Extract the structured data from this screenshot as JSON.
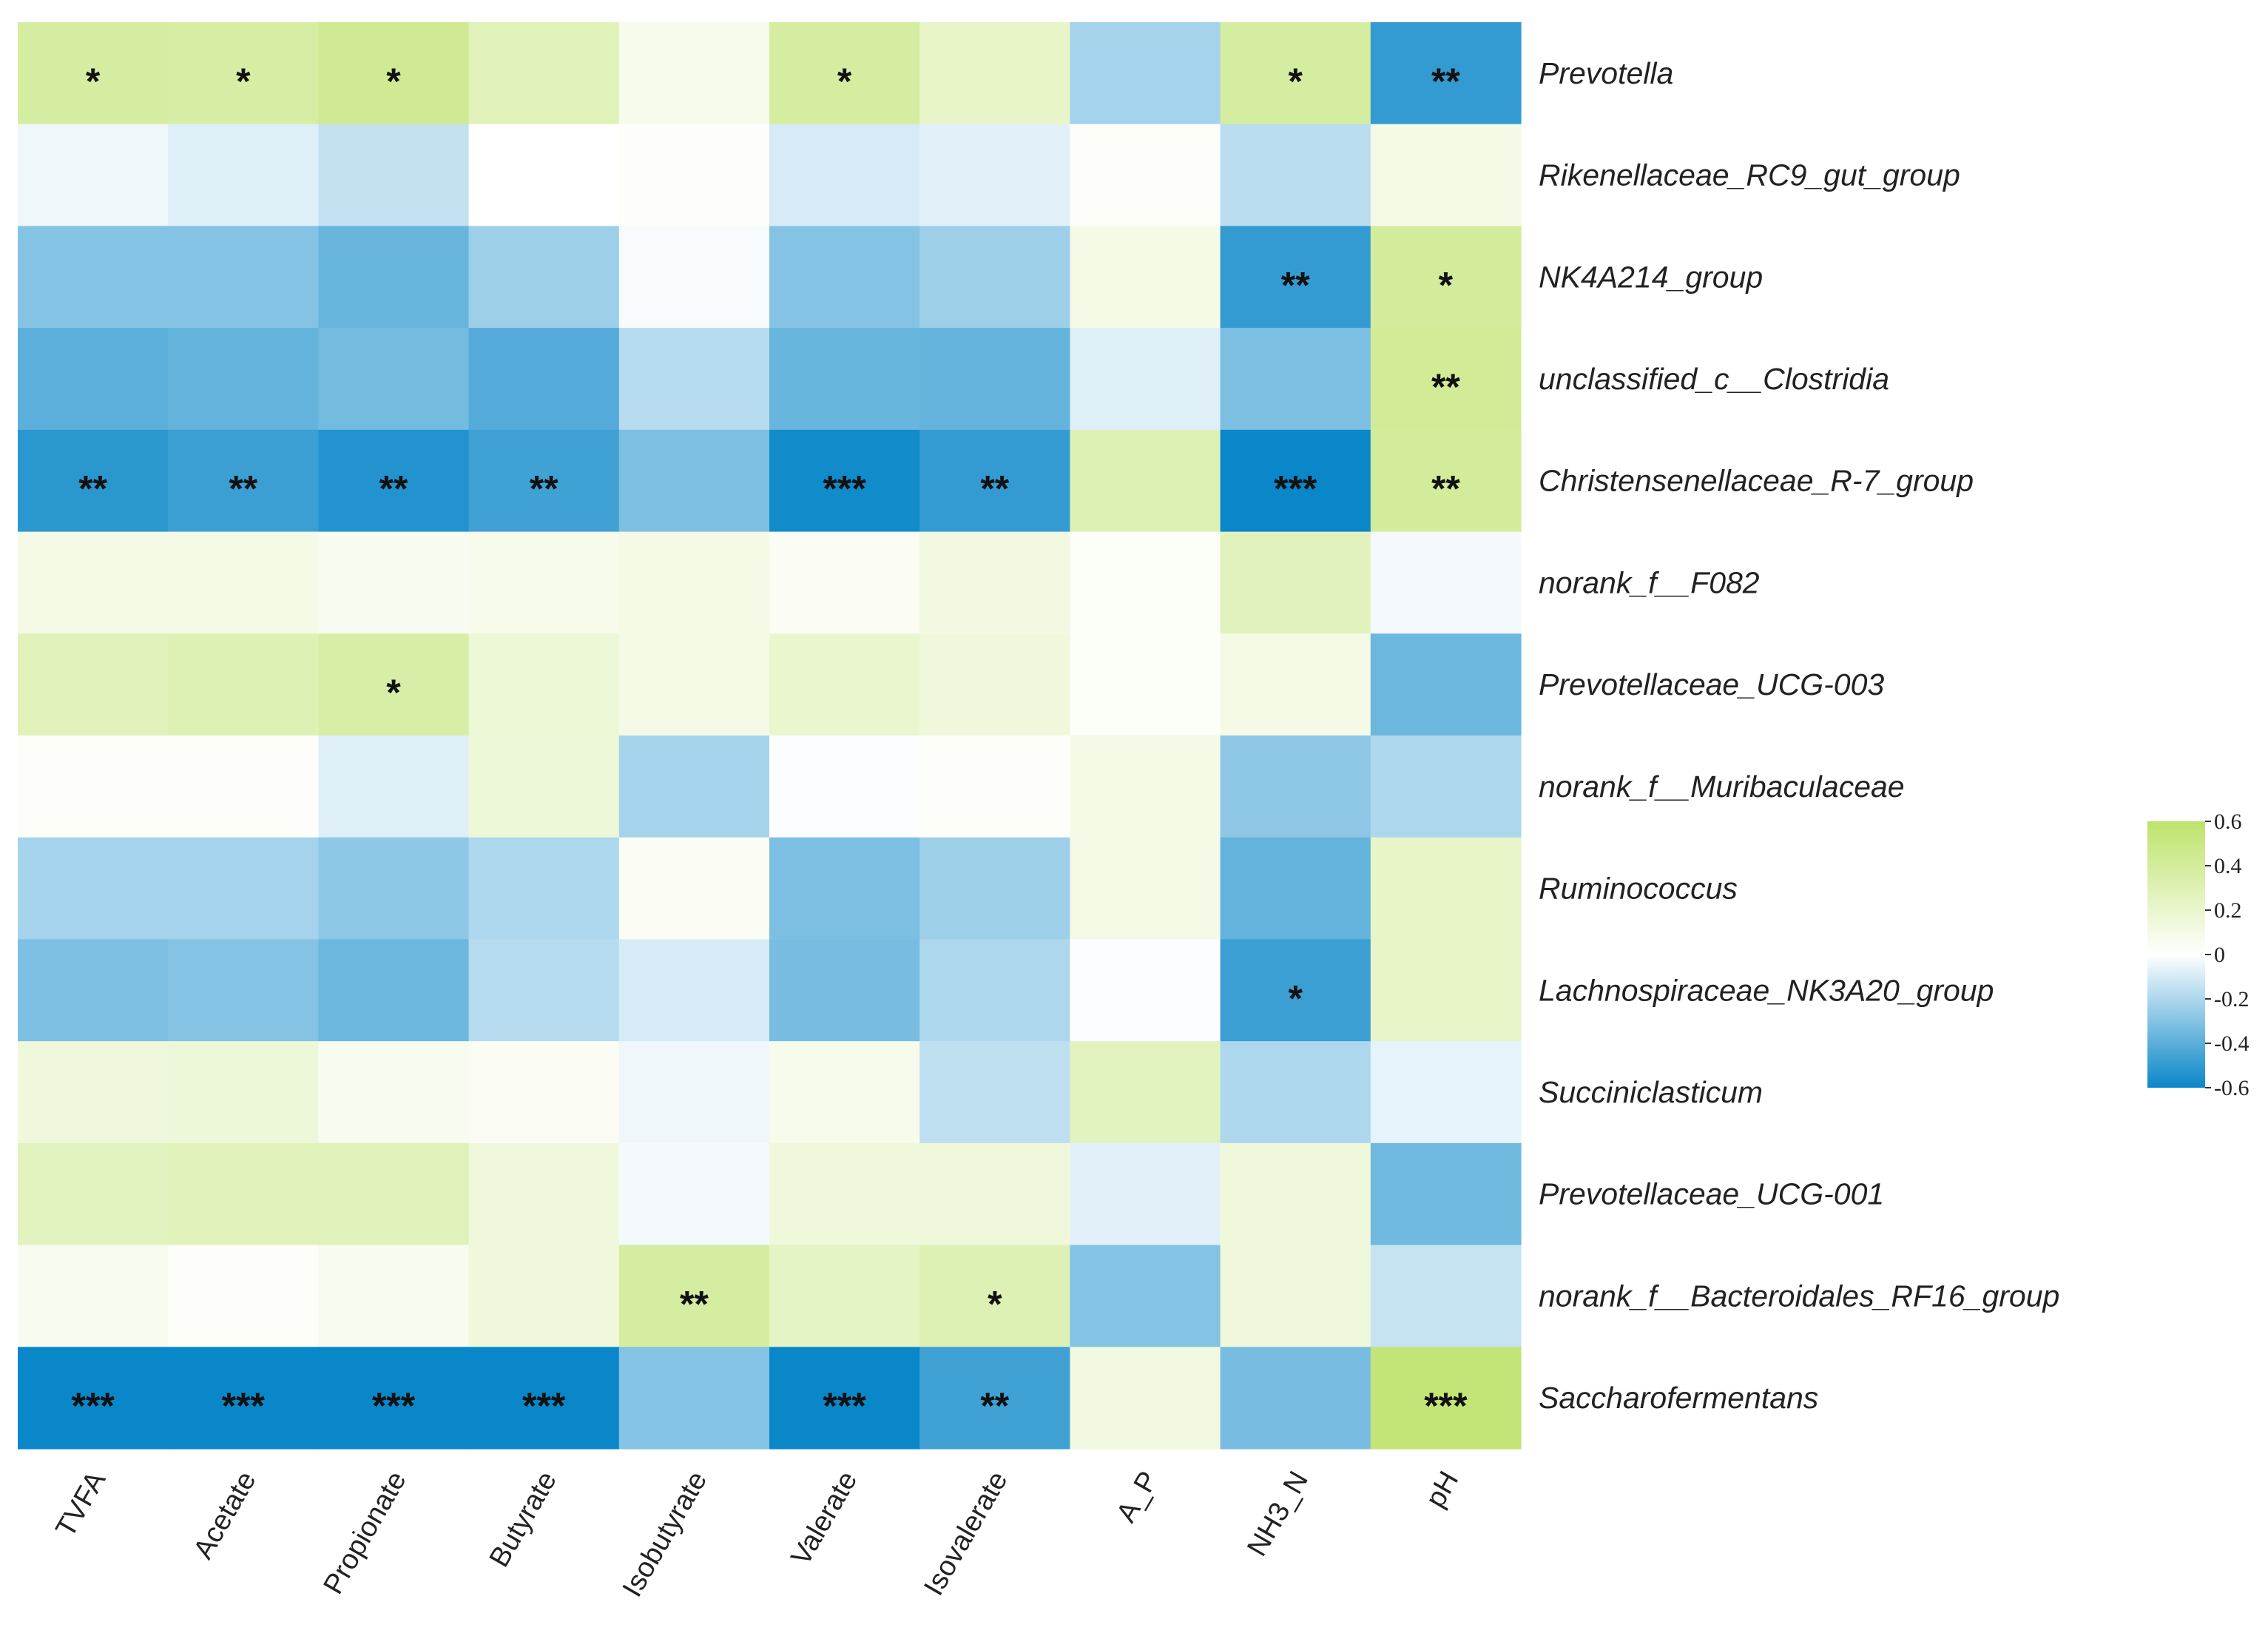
{
  "chart_data": {
    "type": "heatmap",
    "title": "",
    "rows": [
      "Prevotella",
      "Rikenellaceae_RC9_gut_group",
      "NK4A214_group",
      "unclassified_c__Clostridia",
      "Christensenellaceae_R-7_group",
      "norank_f__F082",
      "Prevotellaceae_UCG-003",
      "norank_f__Muribaculaceae",
      "Ruminococcus",
      "Lachnospiraceae_NK3A20_group",
      "Succiniclasticum",
      "Prevotellaceae_UCG-001",
      "norank_f__Bacteroidales_RF16_group",
      "Saccharofermentans"
    ],
    "columns": [
      "TVFA",
      "Acetate",
      "Propionate",
      "Butyrate",
      "Isobutyrate",
      "Valerate",
      "Isovalerate",
      "A_P",
      "NH3_N",
      "pH"
    ],
    "values": [
      [
        0.38,
        0.37,
        0.44,
        0.28,
        0.08,
        0.38,
        0.22,
        -0.22,
        0.38,
        -0.5
      ],
      [
        -0.04,
        -0.08,
        -0.15,
        0.0,
        0.02,
        -0.1,
        -0.07,
        0.02,
        -0.17,
        0.1
      ],
      [
        -0.3,
        -0.3,
        -0.37,
        -0.24,
        -0.02,
        -0.3,
        -0.24,
        0.1,
        -0.5,
        0.4
      ],
      [
        -0.4,
        -0.38,
        -0.34,
        -0.42,
        -0.18,
        -0.37,
        -0.38,
        -0.08,
        -0.32,
        0.42
      ],
      [
        -0.52,
        -0.48,
        -0.54,
        -0.47,
        -0.32,
        -0.58,
        -0.5,
        0.3,
        -0.62,
        0.4
      ],
      [
        0.1,
        0.1,
        0.06,
        0.08,
        0.1,
        0.04,
        0.12,
        0.03,
        0.27,
        -0.03
      ],
      [
        0.28,
        0.3,
        0.36,
        0.17,
        0.1,
        0.2,
        0.14,
        0.03,
        0.1,
        -0.36
      ],
      [
        0.02,
        0.02,
        -0.08,
        0.16,
        -0.22,
        -0.01,
        0.02,
        0.1,
        -0.28,
        -0.2
      ],
      [
        -0.22,
        -0.22,
        -0.28,
        -0.2,
        0.04,
        -0.32,
        -0.24,
        0.1,
        -0.38,
        0.22
      ],
      [
        -0.32,
        -0.3,
        -0.36,
        -0.18,
        -0.1,
        -0.33,
        -0.2,
        -0.01,
        -0.48,
        0.22
      ],
      [
        0.14,
        0.16,
        0.06,
        0.04,
        -0.04,
        0.08,
        -0.16,
        0.26,
        -0.2,
        -0.06
      ],
      [
        0.26,
        0.28,
        0.28,
        0.14,
        -0.03,
        0.14,
        0.14,
        -0.07,
        0.14,
        -0.35
      ],
      [
        0.06,
        0.02,
        0.06,
        0.14,
        0.38,
        0.24,
        0.3,
        -0.3,
        0.14,
        -0.14
      ],
      [
        -0.62,
        -0.62,
        -0.64,
        -0.6,
        -0.3,
        -0.6,
        -0.47,
        0.12,
        -0.33,
        0.55
      ]
    ],
    "significance": [
      [
        "*",
        "*",
        "*",
        "",
        "",
        "*",
        "",
        "",
        "*",
        "**"
      ],
      [
        "",
        "",
        "",
        "",
        "",
        "",
        "",
        "",
        "",
        ""
      ],
      [
        "",
        "",
        "",
        "",
        "",
        "",
        "",
        "",
        "**",
        "*"
      ],
      [
        "",
        "",
        "",
        "",
        "",
        "",
        "",
        "",
        "",
        "**"
      ],
      [
        "**",
        "**",
        "**",
        "**",
        "",
        "***",
        "**",
        "",
        "***",
        "**"
      ],
      [
        "",
        "",
        "",
        "",
        "",
        "",
        "",
        "",
        "",
        ""
      ],
      [
        "",
        "",
        "*",
        "",
        "",
        "",
        "",
        "",
        "",
        ""
      ],
      [
        "",
        "",
        "",
        "",
        "",
        "",
        "",
        "",
        "",
        ""
      ],
      [
        "",
        "",
        "",
        "",
        "",
        "",
        "",
        "",
        "",
        ""
      ],
      [
        "",
        "",
        "",
        "",
        "",
        "",
        "",
        "",
        "*",
        ""
      ],
      [
        "",
        "",
        "",
        "",
        "",
        "",
        "",
        "",
        "",
        ""
      ],
      [
        "",
        "",
        "",
        "",
        "",
        "",
        "",
        "",
        "",
        ""
      ],
      [
        "",
        "",
        "",
        "",
        "**",
        "",
        "*",
        "",
        "",
        ""
      ],
      [
        "***",
        "***",
        "***",
        "***",
        "",
        "***",
        "**",
        "",
        "",
        "***"
      ]
    ],
    "color_scale": {
      "min": -0.6,
      "max": 0.6,
      "low_color": "#0a87c8",
      "mid_color": "#ffffff",
      "high_color": "#bde36b"
    },
    "legend": {
      "position": "right",
      "ticks": [
        0.6,
        0.4,
        0.2,
        0,
        -0.2,
        -0.4,
        -0.6
      ],
      "tick_labels": [
        "0.6",
        "0.4",
        "0.2",
        "0",
        "-0.2",
        "-0.4",
        "-0.6"
      ]
    }
  }
}
